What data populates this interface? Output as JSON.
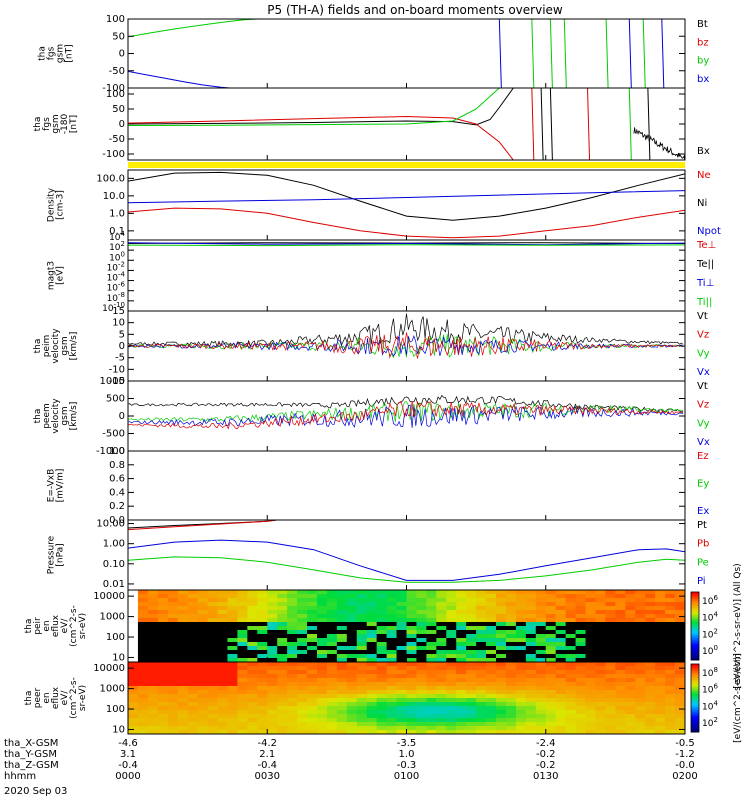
{
  "title": "P5 (TH-A) fields and on-board moments overview",
  "date": "2020 Sep 03",
  "chart_data": [
    {
      "id": "fgs_gsm",
      "type": "line",
      "ylabel": [
        "tha",
        "fgs",
        "gsm",
        "[nT]"
      ],
      "ylim": [
        -100,
        100
      ],
      "yticks": [
        "100",
        "50",
        "0",
        "-50",
        "-100"
      ],
      "yvalues": [
        100,
        50,
        0,
        -50,
        -100
      ],
      "legend": [
        {
          "label": "Bt",
          "color": "#000000"
        },
        {
          "label": "bz",
          "color": "#dd0000"
        },
        {
          "label": "by",
          "color": "#00cc00"
        },
        {
          "label": "bx",
          "color": "#0000dd"
        }
      ],
      "series": [
        {
          "color": "#00cc00",
          "x": [
            0,
            5,
            10,
            15,
            20,
            25,
            28
          ],
          "y": [
            48,
            60,
            71,
            81,
            90,
            98,
            100
          ]
        },
        {
          "color": "#0000dd",
          "x": [
            0,
            4,
            8,
            12,
            16,
            20,
            22
          ],
          "y": [
            -52,
            -62,
            -72,
            -82,
            -91,
            -98,
            -100
          ]
        }
      ]
    },
    {
      "id": "fgs_gsm_clip",
      "type": "line",
      "ylabel": [
        "tha",
        "fgs",
        "gsm",
        "-180",
        "[nT]"
      ],
      "ylim": [
        -120,
        120
      ],
      "yticks": [
        "100",
        "50",
        "0",
        "-50",
        "-100"
      ],
      "yvalues": [
        100,
        50,
        0,
        -50,
        -100
      ],
      "legend": [
        {
          "label": "Bx",
          "color": "#000000"
        }
      ],
      "series": [
        {
          "color": "#000000",
          "x": [
            0,
            20,
            40,
            60,
            70,
            75,
            78,
            80,
            83
          ],
          "y": [
            0,
            2,
            5,
            10,
            8,
            -3,
            15,
            55,
            120
          ]
        },
        {
          "color": "#dd0000",
          "x": [
            0,
            20,
            40,
            60,
            70,
            75,
            80,
            83
          ],
          "y": [
            3,
            10,
            18,
            25,
            20,
            0,
            -60,
            -120
          ]
        },
        {
          "color": "#00cc00",
          "x": [
            0,
            20,
            40,
            60,
            70,
            75,
            80
          ],
          "y": [
            -5,
            -4,
            -2,
            0,
            10,
            50,
            120
          ]
        }
      ]
    },
    {
      "id": "density",
      "type": "line",
      "yscale": "log",
      "ylabel": [
        "Density",
        "[cm-3]"
      ],
      "ylim": [
        0.03,
        300
      ],
      "yticks": [
        "100.0",
        "10.0",
        "1.0",
        "0.1"
      ],
      "yvalues": [
        100,
        10,
        1,
        0.1
      ],
      "legend": [
        {
          "label": "Ne",
          "color": "#dd0000"
        },
        {
          "label": "Ni",
          "color": "#000000"
        },
        {
          "label": "Npot",
          "color": "#0000dd"
        }
      ],
      "series": [
        {
          "color": "#000000",
          "x": [
            0,
            10,
            20,
            30,
            40,
            50,
            60,
            70,
            80,
            90,
            100,
            110,
            120
          ],
          "y": [
            70,
            200,
            220,
            150,
            40,
            5,
            0.7,
            0.4,
            0.7,
            2,
            8,
            40,
            180
          ]
        },
        {
          "color": "#0000dd",
          "x": [
            0,
            20,
            40,
            60,
            80,
            100,
            120
          ],
          "y": [
            4,
            5,
            6,
            8,
            11,
            15,
            20
          ]
        },
        {
          "color": "#dd0000",
          "x": [
            0,
            10,
            20,
            30,
            40,
            50,
            60,
            70,
            80,
            90,
            100,
            110,
            120
          ],
          "y": [
            1.2,
            2,
            1.8,
            1,
            0.3,
            0.1,
            0.05,
            0.04,
            0.05,
            0.1,
            0.2,
            0.6,
            1.5
          ]
        }
      ]
    },
    {
      "id": "moments_temp",
      "type": "line",
      "yscale": "log",
      "ylabel": [
        "magt3",
        "[eV]"
      ],
      "ylim": [
        1e-10,
        10000
      ],
      "yticks": [
        "10^4",
        "10^2",
        "10^0",
        "10^-2",
        "10^-4",
        "10^-6",
        "10^-8",
        "10^-10"
      ],
      "yvalues": [
        10000,
        100,
        1,
        0.01,
        0.0001,
        1e-06,
        1e-08,
        1e-10
      ],
      "legend": [
        {
          "label": "Te⊥",
          "color": "#dd0000"
        },
        {
          "label": "Te||",
          "color": "#000000"
        },
        {
          "label": "Ti⊥",
          "color": "#0000dd"
        },
        {
          "label": "Ti||",
          "color": "#00cc00"
        }
      ],
      "series": [
        {
          "color": "#000000",
          "x": [
            0,
            30,
            60,
            90,
            120
          ],
          "y": [
            2000,
            3000,
            2500,
            3000,
            2000
          ]
        },
        {
          "color": "#0000dd",
          "x": [
            0,
            30,
            60,
            90,
            120
          ],
          "y": [
            3000,
            1500,
            2000,
            1200,
            2500
          ]
        },
        {
          "color": "#00cc00",
          "x": [
            0,
            30,
            60,
            90,
            120
          ],
          "y": [
            1000,
            800,
            1200,
            900,
            1100
          ]
        }
      ]
    },
    {
      "id": "peim_velocity",
      "type": "line",
      "ylabel": [
        "tha",
        "peim",
        "velocity",
        "gsm",
        "[km/s]"
      ],
      "ylim": [
        -15,
        15
      ],
      "yticks": [
        "15",
        "10",
        "5",
        "0",
        "-5",
        "-10",
        "-15"
      ],
      "yvalues": [
        15,
        10,
        5,
        0,
        -5,
        -10,
        -15
      ],
      "legend": [
        {
          "label": "Vt",
          "color": "#000000"
        },
        {
          "label": "Vz",
          "color": "#dd0000"
        },
        {
          "label": "Vy",
          "color": "#00cc00"
        },
        {
          "label": "Vx",
          "color": "#0000dd"
        }
      ],
      "noisy": [
        {
          "color": "#000000",
          "base": [
            [
              0,
              1
            ],
            [
              30,
              1
            ],
            [
              50,
              4
            ],
            [
              60,
              8
            ],
            [
              75,
              5
            ],
            [
              95,
              3
            ],
            [
              120,
              1
            ]
          ],
          "amp": [
            [
              0,
              0.5
            ],
            [
              40,
              2
            ],
            [
              60,
              6
            ],
            [
              80,
              4
            ],
            [
              100,
              1
            ],
            [
              120,
              0.5
            ]
          ]
        },
        {
          "color": "#00cc00",
          "base": [
            [
              0,
              0
            ],
            [
              120,
              0
            ]
          ],
          "amp": [
            [
              0,
              0.5
            ],
            [
              40,
              2
            ],
            [
              60,
              6
            ],
            [
              80,
              4
            ],
            [
              100,
              1
            ],
            [
              120,
              0.5
            ]
          ]
        },
        {
          "color": "#0000dd",
          "base": [
            [
              0,
              0
            ],
            [
              120,
              0
            ]
          ],
          "amp": [
            [
              0,
              0.5
            ],
            [
              40,
              2
            ],
            [
              60,
              5
            ],
            [
              80,
              3
            ],
            [
              100,
              1
            ],
            [
              120,
              0.5
            ]
          ]
        },
        {
          "color": "#dd0000",
          "base": [
            [
              0,
              0
            ],
            [
              120,
              0
            ]
          ],
          "amp": [
            [
              0,
              0.5
            ],
            [
              40,
              2
            ],
            [
              60,
              6
            ],
            [
              80,
              4
            ],
            [
              100,
              1
            ],
            [
              120,
              0.5
            ]
          ]
        }
      ]
    },
    {
      "id": "peem_velocity",
      "type": "line",
      "ylabel": [
        "tha",
        "peem",
        "velocity",
        "gsm",
        "[km/s]"
      ],
      "ylim": [
        -1000,
        1000
      ],
      "yticks": [
        "1000",
        "500",
        "0",
        "-500",
        "-1000"
      ],
      "yvalues": [
        1000,
        500,
        0,
        -500,
        -1000
      ],
      "legend": [
        {
          "label": "Vt",
          "color": "#000000"
        },
        {
          "label": "Vz",
          "color": "#dd0000"
        },
        {
          "label": "Vy",
          "color": "#00cc00"
        },
        {
          "label": "Vx",
          "color": "#0000dd"
        }
      ],
      "noisy": [
        {
          "color": "#000000",
          "base": [
            [
              0,
              320
            ],
            [
              30,
              330
            ],
            [
              45,
              300
            ],
            [
              60,
              480
            ],
            [
              80,
              450
            ],
            [
              100,
              250
            ],
            [
              120,
              150
            ]
          ],
          "amp": [
            [
              0,
              30
            ],
            [
              40,
              60
            ],
            [
              60,
              150
            ],
            [
              90,
              100
            ],
            [
              120,
              40
            ]
          ]
        },
        {
          "color": "#00cc00",
          "base": [
            [
              0,
              -100
            ],
            [
              20,
              -100
            ],
            [
              50,
              100
            ],
            [
              80,
              150
            ],
            [
              100,
              200
            ],
            [
              120,
              150
            ]
          ],
          "amp": [
            [
              0,
              30
            ],
            [
              40,
              150
            ],
            [
              60,
              300
            ],
            [
              90,
              200
            ],
            [
              120,
              40
            ]
          ]
        },
        {
          "color": "#0000dd",
          "base": [
            [
              0,
              -180
            ],
            [
              20,
              -180
            ],
            [
              50,
              -50
            ],
            [
              80,
              50
            ],
            [
              100,
              100
            ],
            [
              120,
              80
            ]
          ],
          "amp": [
            [
              0,
              30
            ],
            [
              40,
              200
            ],
            [
              60,
              350
            ],
            [
              90,
              200
            ],
            [
              120,
              40
            ]
          ]
        },
        {
          "color": "#dd0000",
          "base": [
            [
              0,
              -250
            ],
            [
              20,
              -300
            ],
            [
              50,
              0
            ],
            [
              60,
              200
            ],
            [
              80,
              180
            ],
            [
              100,
              150
            ],
            [
              120,
              100
            ]
          ],
          "amp": [
            [
              0,
              30
            ],
            [
              40,
              150
            ],
            [
              60,
              250
            ],
            [
              90,
              150
            ],
            [
              120,
              40
            ]
          ]
        }
      ]
    },
    {
      "id": "efield",
      "type": "line",
      "ylabel": [
        "E=-VxB",
        "[mV/m]"
      ],
      "ylim": [
        0,
        1
      ],
      "yticks": [
        "1.0",
        "0.8",
        "0.6",
        "0.4",
        "0.2",
        "0.0"
      ],
      "yvalues": [
        1,
        0.8,
        0.6,
        0.4,
        0.2,
        0
      ],
      "legend": [
        {
          "label": "Ez",
          "color": "#dd0000"
        },
        {
          "label": "Ey",
          "color": "#00cc00"
        },
        {
          "label": "Ex",
          "color": "#0000dd"
        }
      ],
      "series": []
    },
    {
      "id": "pressure",
      "type": "line",
      "yscale": "log",
      "ylabel": [
        "Pressure",
        "[nPa]"
      ],
      "ylim": [
        0.005,
        15
      ],
      "yticks": [
        "10.00",
        "1.00",
        "0.10",
        "0.01"
      ],
      "yvalues": [
        10,
        1,
        0.1,
        0.01
      ],
      "legend": [
        {
          "label": "Pt",
          "color": "#000000"
        },
        {
          "label": "Pb",
          "color": "#dd0000"
        },
        {
          "label": "Pe",
          "color": "#00cc00"
        },
        {
          "label": "Pi",
          "color": "#0000dd"
        }
      ],
      "series": [
        {
          "color": "#000000",
          "x": [
            0,
            10,
            20,
            30,
            32
          ],
          "y": [
            6,
            8,
            10,
            13,
            15
          ]
        },
        {
          "color": "#dd0000",
          "x": [
            0,
            10,
            20,
            30,
            32
          ],
          "y": [
            5,
            7,
            9.5,
            13,
            15
          ]
        },
        {
          "color": "#0000dd",
          "x": [
            0,
            10,
            20,
            30,
            40,
            50,
            60,
            70,
            80,
            90,
            100,
            110,
            116,
            120
          ],
          "y": [
            0.6,
            1.2,
            1.5,
            1.2,
            0.5,
            0.08,
            0.015,
            0.015,
            0.03,
            0.08,
            0.2,
            0.5,
            0.55,
            0.4
          ]
        },
        {
          "color": "#00cc00",
          "x": [
            0,
            10,
            20,
            30,
            40,
            50,
            60,
            70,
            80,
            90,
            100,
            110,
            116,
            120
          ],
          "y": [
            0.15,
            0.22,
            0.2,
            0.12,
            0.05,
            0.02,
            0.012,
            0.012,
            0.015,
            0.025,
            0.05,
            0.12,
            0.17,
            0.15
          ]
        }
      ]
    },
    {
      "id": "peir_en_eflux",
      "type": "heatmap",
      "yscale": "log",
      "ylabel": [
        "tha",
        "peir",
        "en",
        "eflux",
        "eV/",
        "(cm^2-s-",
        "sr-eV)"
      ],
      "ylim": [
        6,
        20000
      ],
      "yticks": [
        "10000",
        "1000",
        "100",
        "10"
      ],
      "yvalues": [
        10000,
        1000,
        100,
        10
      ],
      "colorbar": [
        "10^6",
        "10^4",
        "10^2",
        "10^0"
      ],
      "colorbar_label": "[eV/(cm^2-s-sr-eV)] (All Qs)"
    },
    {
      "id": "peer_en_eflux",
      "type": "heatmap",
      "yscale": "log",
      "ylabel": [
        "tha",
        "peer",
        "en",
        "eflux",
        "eV/",
        "(cm^2-s-",
        "sr-eV)"
      ],
      "ylim": [
        6,
        20000
      ],
      "yticks": [
        "10000",
        "1000",
        "100",
        "10"
      ],
      "yvalues": [
        10000,
        1000,
        100,
        10
      ],
      "colorbar": [
        "10^8",
        "10^6",
        "10^4",
        "10^2"
      ],
      "colorbar_label": "[eV/(cm^2-s-sr-eV)]"
    }
  ],
  "x_axis": {
    "range_minutes": [
      0,
      120
    ],
    "ticks_minutes": [
      0,
      30,
      60,
      90,
      120
    ],
    "rows": [
      {
        "label": "tha_X-GSM",
        "values": [
          "-4.6",
          "-4.2",
          "-3.5",
          "-2.4",
          "-0.5"
        ]
      },
      {
        "label": "tha_Y-GSM",
        "values": [
          "3.1",
          "2.1",
          "1.0",
          "-0.2",
          "-1.2"
        ]
      },
      {
        "label": "tha_Z-GSM",
        "values": [
          "-0.4",
          "-0.4",
          "-0.3",
          "-0.2",
          "-0.0"
        ]
      },
      {
        "label": "hhmm",
        "values": [
          "0000",
          "0030",
          "0100",
          "0130",
          "0200"
        ]
      }
    ]
  }
}
